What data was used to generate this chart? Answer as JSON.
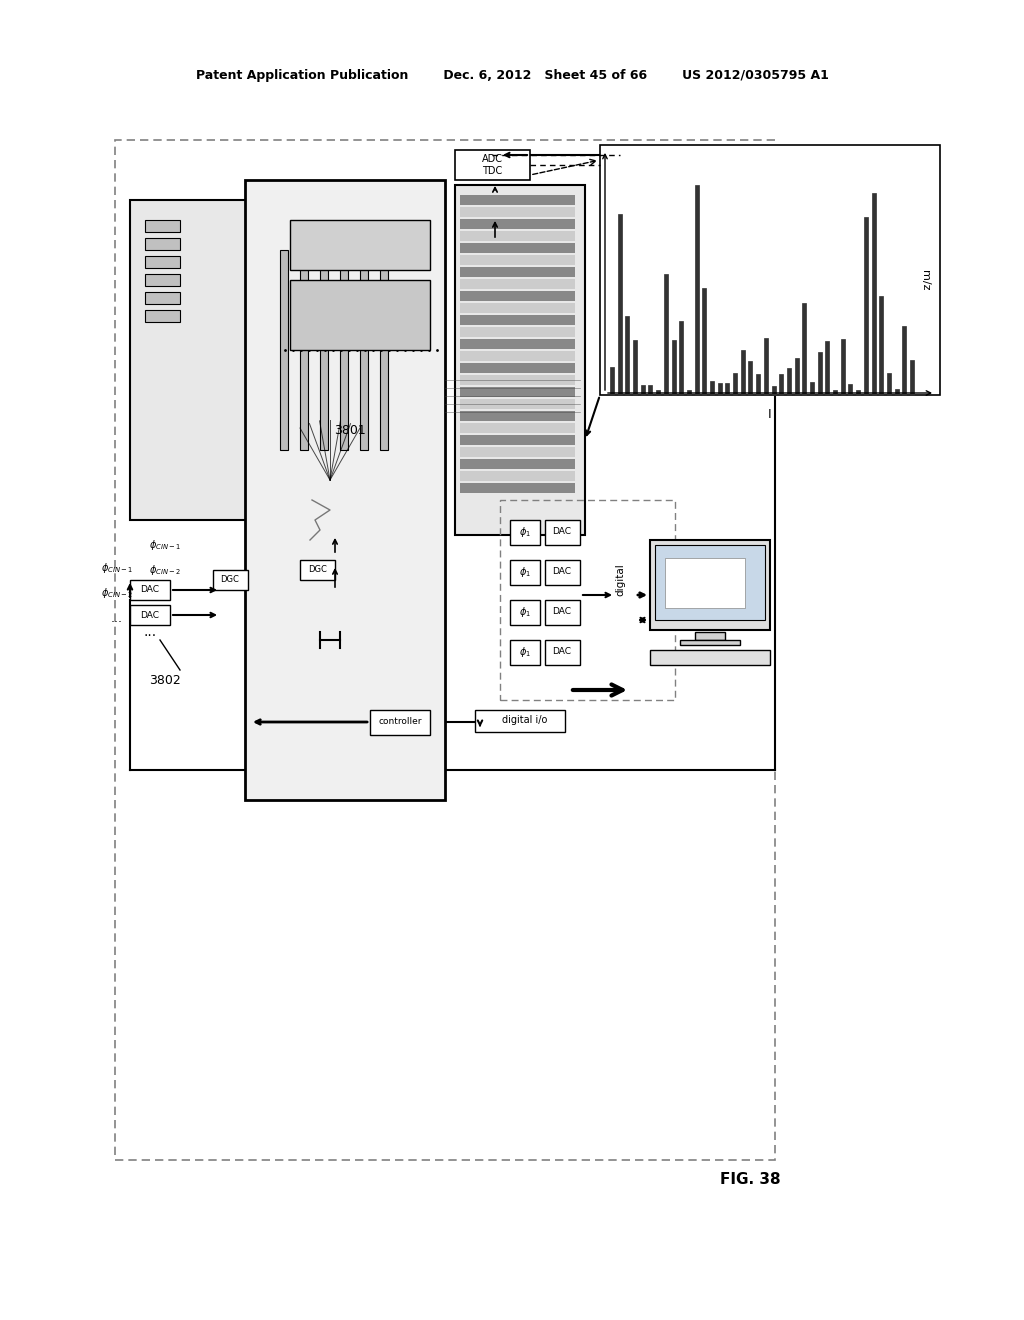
{
  "header_left": "Patent Application Publication",
  "header_center": "Dec. 6, 2012   Sheet 45 of 66",
  "header_right": "US 2012/0305795 A1",
  "figure_label": "FIG. 38",
  "label_3801": "3801",
  "label_3802": "3802",
  "bg_color": "#ffffff"
}
